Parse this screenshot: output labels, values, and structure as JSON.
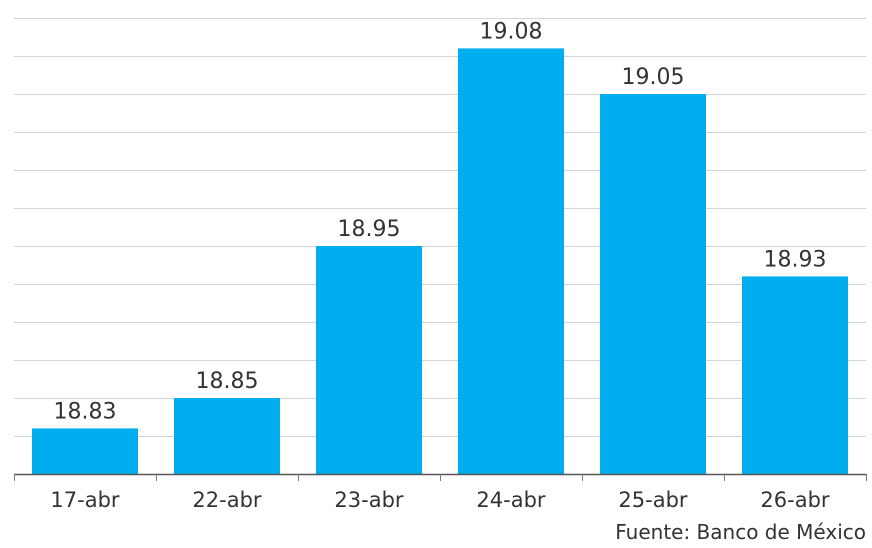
{
  "header": {
    "text": ""
  },
  "source": "Fuente: Banco de México",
  "colors": {
    "bar": "#00adef",
    "grid": "#cfd6dd",
    "axis": "#555555",
    "text": "#333333"
  },
  "chart_data": {
    "type": "bar",
    "categories": [
      "17-abr",
      "22-abr",
      "23-abr",
      "24-abr",
      "25-abr",
      "26-abr"
    ],
    "values": [
      18.83,
      18.85,
      18.95,
      19.08,
      19.05,
      18.93
    ],
    "value_labels": [
      "18.83",
      "18.85",
      "18.95",
      "19.08",
      "19.05",
      "18.93"
    ],
    "ylim": [
      18.8,
      19.1
    ],
    "grid": true,
    "grid_step": 0.025,
    "title": "",
    "xlabel": "",
    "ylabel": ""
  }
}
